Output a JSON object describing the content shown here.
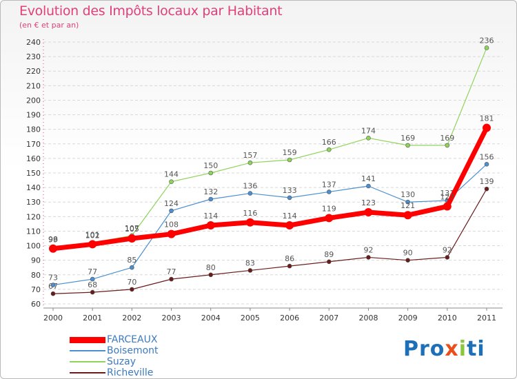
{
  "header": {
    "title": "Evolution des Impôts locaux par Habitant",
    "subtitle": "(en € et par an)"
  },
  "brand": {
    "part1": "Pro",
    "part2": "x",
    "part3": "i",
    "part4": "ti"
  },
  "chart_data": {
    "type": "line",
    "title": "Evolution des Impôts locaux par Habitant",
    "subtitle": "(en € et par an)",
    "xlabel": "",
    "ylabel": "",
    "x": [
      "2000",
      "2001",
      "2002",
      "2003",
      "2004",
      "2005",
      "2006",
      "2007",
      "2008",
      "2009",
      "2010",
      "2011"
    ],
    "ylim": [
      60,
      240
    ],
    "yticks": [
      60,
      70,
      80,
      90,
      100,
      110,
      120,
      130,
      140,
      150,
      160,
      170,
      180,
      190,
      200,
      210,
      220,
      230,
      240
    ],
    "grid": "horizontal dashed",
    "legend_position": "bottom-left",
    "series": [
      {
        "name": "Richeville",
        "color": "#6b1a1a",
        "width": 1.2,
        "marker": 3,
        "values": [
          67,
          68,
          70,
          77,
          80,
          83,
          86,
          89,
          92,
          90,
          92,
          139
        ],
        "labels": [
          "67",
          "68",
          "70",
          "77",
          "80",
          "83",
          "86",
          "89",
          "92",
          "90",
          "92",
          "139"
        ]
      },
      {
        "name": "Suzay",
        "color": "#8fd45a",
        "width": 1.2,
        "marker": 3,
        "values": [
          99,
          102,
          107,
          144,
          150,
          157,
          159,
          166,
          174,
          169,
          169,
          236
        ],
        "labels": [
          "99",
          "102",
          "107",
          "144",
          "150",
          "157",
          "159",
          "166",
          "174",
          "169",
          "169",
          "236"
        ]
      },
      {
        "name": "Boisemont",
        "color": "#4b8fd0",
        "width": 1.2,
        "marker": 3,
        "values": [
          73,
          77,
          85,
          124,
          132,
          136,
          133,
          137,
          141,
          130,
          131,
          156
        ],
        "labels": [
          "73",
          "77",
          "85",
          "124",
          "132",
          "136",
          "133",
          "137",
          "141",
          "130",
          "131",
          "156"
        ]
      },
      {
        "name": "FARCEAUX",
        "color": "#ff0000",
        "width": 7,
        "marker": 6,
        "values": [
          98,
          101,
          105,
          108,
          114,
          116,
          114,
          119,
          123,
          121,
          127,
          181
        ],
        "labels": [
          "98",
          "101",
          "105",
          "108",
          "114",
          "116",
          "114",
          "119",
          "123",
          "121",
          "127",
          "181"
        ]
      }
    ],
    "legend": [
      "FARCEAUX",
      "Boisemont",
      "Suzay",
      "Richeville"
    ]
  }
}
